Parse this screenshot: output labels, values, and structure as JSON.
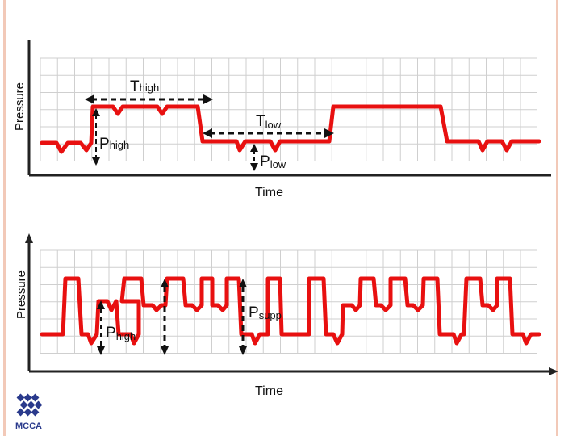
{
  "colors": {
    "waveform": "#e81010",
    "grid": "#cfcfcf",
    "axis": "#222222",
    "arrow": "#111111",
    "frame": "#f2c9b8",
    "logo_blue": "#2a3a8c"
  },
  "top_diagram": {
    "y_axis_label": "Pressure",
    "x_axis_label": "Time",
    "t_high_main": "T",
    "t_high_sub": "high",
    "t_low_main": "T",
    "t_low_sub": "low",
    "p_high_main": "P",
    "p_high_sub": "high",
    "p_low_main": "P",
    "p_low_sub": "low"
  },
  "bottom_diagram": {
    "y_axis_label": "Pressure",
    "x_axis_label": "Time",
    "p_high_main": "P",
    "p_high_sub": "high",
    "p_supp_main": "P",
    "p_supp_sub": "supp"
  },
  "logo": {
    "text": "MCCA",
    "icon": "mcca-logo-icon"
  }
}
